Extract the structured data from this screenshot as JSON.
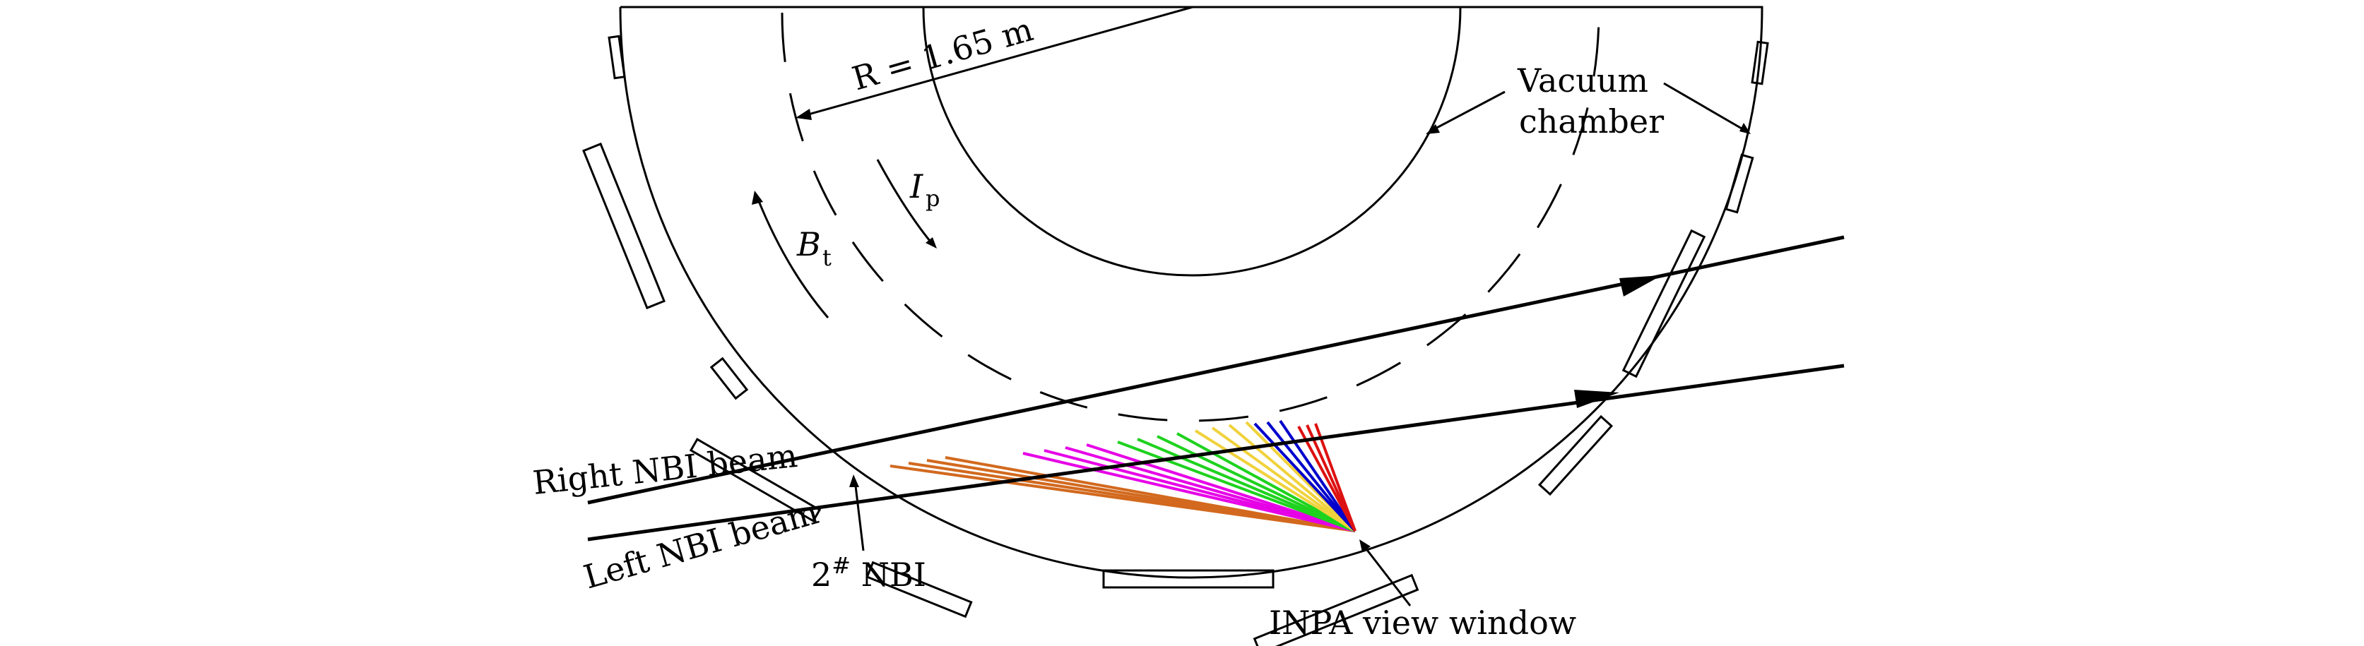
{
  "diagram": {
    "labels": {
      "radius": "R = 1.65 m",
      "vacuum_line1": "Vacuum",
      "vacuum_line2": "chamber",
      "current_symbol": "I",
      "current_sub": "p",
      "field_symbol": "B",
      "field_sub": "t",
      "right_beam": "Right NBI beam",
      "left_beam": "Left NBI beam",
      "nbi_symbol": "2",
      "nbi_superscript": "#",
      "nbi_name": "NBI",
      "inpa": "INPA view window"
    },
    "colors": {
      "outline": "#000000",
      "ray_groups": [
        "#d2691e",
        "#e600e6",
        "#1ed21e",
        "#f0d23c",
        "#0000cc",
        "#dd1111"
      ]
    }
  }
}
